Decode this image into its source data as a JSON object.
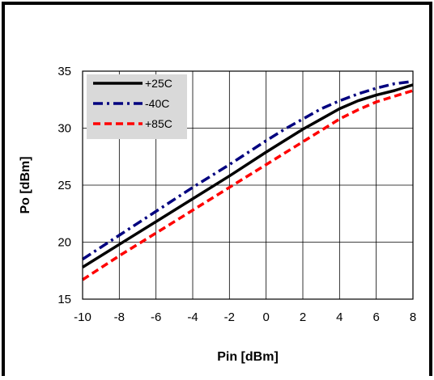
{
  "chart_data": {
    "type": "line",
    "title": "",
    "xlabel": "Pin [dBm]",
    "ylabel": "Po [dBm]",
    "xlim": [
      -10,
      8
    ],
    "ylim": [
      15,
      35
    ],
    "xticks": [
      -10,
      -8,
      -6,
      -4,
      -2,
      0,
      2,
      4,
      6,
      8
    ],
    "yticks": [
      15,
      20,
      25,
      30,
      35
    ],
    "xtick_labels": [
      "-10",
      "-8",
      "-6",
      "-4",
      "-2",
      "0",
      "2",
      "4",
      "6",
      "8"
    ],
    "ytick_labels": [
      "15",
      "20",
      "25",
      "30",
      "35"
    ],
    "grid": true,
    "legend_position": "top-left",
    "x": [
      -10,
      -8,
      -6,
      -4,
      -2,
      0,
      1,
      2,
      3,
      4,
      5,
      6,
      7,
      8
    ],
    "series": [
      {
        "name": "+25C",
        "color": "#000000",
        "style": "solid",
        "values": [
          17.8,
          19.8,
          21.8,
          23.8,
          25.8,
          27.9,
          28.9,
          29.9,
          30.8,
          31.7,
          32.4,
          32.9,
          33.3,
          33.8
        ]
      },
      {
        "name": "-40C",
        "color": "#00007f",
        "style": "dashdot",
        "values": [
          18.5,
          20.6,
          22.7,
          24.8,
          26.8,
          28.9,
          29.9,
          30.8,
          31.7,
          32.4,
          33.0,
          33.5,
          33.9,
          34.1
        ]
      },
      {
        "name": "+85C",
        "color": "#ff0000",
        "style": "dashed",
        "values": [
          16.7,
          18.8,
          20.8,
          22.8,
          24.8,
          26.8,
          27.8,
          28.8,
          29.8,
          30.8,
          31.6,
          32.3,
          32.8,
          33.3
        ]
      }
    ]
  }
}
